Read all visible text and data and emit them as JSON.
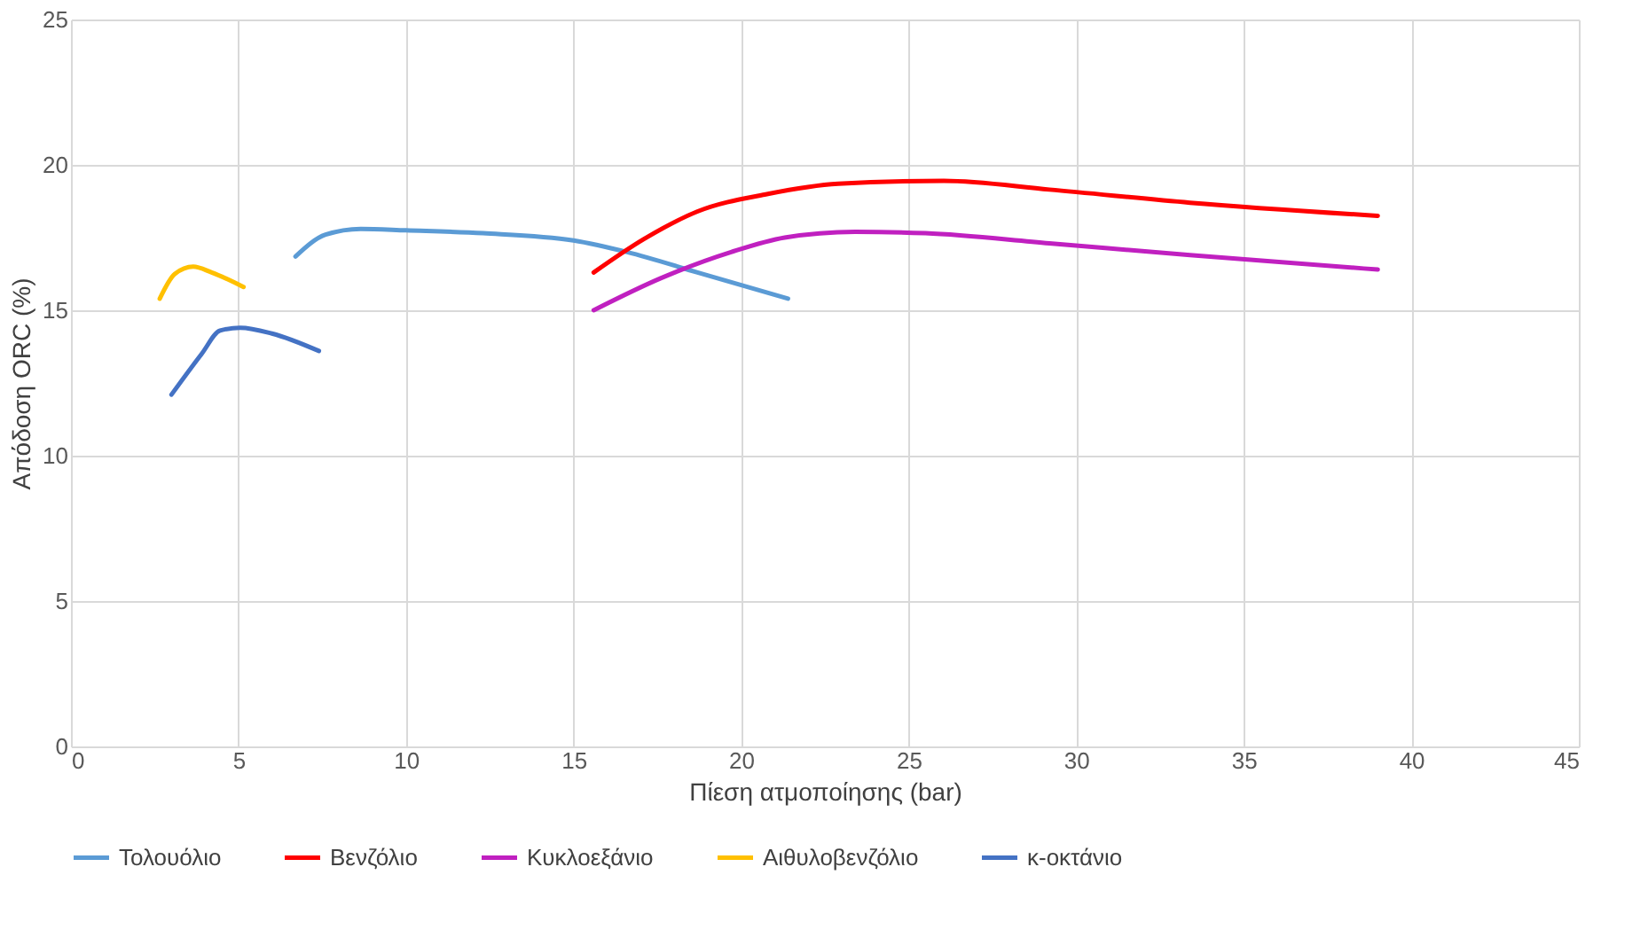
{
  "chart_data": {
    "type": "line",
    "xlabel": "Πίεση ατμοποίησης (bar)",
    "ylabel": "Απόδοση ORC (%)",
    "xlim": [
      0,
      45
    ],
    "xticks": [
      0,
      5,
      10,
      15,
      20,
      25,
      30,
      35,
      40,
      45
    ],
    "ylim": [
      0,
      25
    ],
    "yticks": [
      0,
      5,
      10,
      15,
      20,
      25
    ],
    "grid": true,
    "legend": "bottom",
    "line_style": "solid",
    "marker": "none",
    "series": [
      {
        "name": "Τολουόλιο",
        "color": "#5b9bd5",
        "x": [
          6.7,
          7.6,
          8.65,
          10,
          12.3,
          15,
          16.6,
          18.7,
          21.4
        ],
        "values": [
          16.85,
          17.6,
          17.8,
          17.75,
          17.65,
          17.4,
          17.0,
          16.3,
          15.4
        ]
      },
      {
        "name": "Βενζόλιο",
        "color": "#ff0000",
        "x": [
          15.6,
          17.1,
          18.7,
          20.8,
          22.9,
          26.05,
          29.2,
          33.4,
          39
        ],
        "values": [
          16.3,
          17.45,
          18.4,
          19.0,
          19.35,
          19.45,
          19.15,
          18.7,
          18.25
        ]
      },
      {
        "name": "Κυκλοεξάνιο",
        "color": "#c020c0",
        "x": [
          15.6,
          17.6,
          19.7,
          21.3,
          23.4,
          25.5,
          29.2,
          33.4,
          39
        ],
        "values": [
          15.0,
          16.1,
          17.0,
          17.5,
          17.7,
          17.65,
          17.3,
          16.9,
          16.4
        ]
      },
      {
        "name": "Αιθυλοβενζόλιο",
        "color": "#ffc000",
        "x": [
          2.65,
          3.1,
          3.65,
          4.2,
          5.15
        ],
        "values": [
          15.4,
          16.25,
          16.5,
          16.3,
          15.8
        ]
      },
      {
        "name": "κ-οκτάνιο",
        "color": "#4472c4",
        "x": [
          3.0,
          3.9,
          4.45,
          5.05,
          6.0,
          7.4
        ],
        "values": [
          12.1,
          13.5,
          14.3,
          14.4,
          14.2,
          13.6
        ]
      }
    ]
  }
}
